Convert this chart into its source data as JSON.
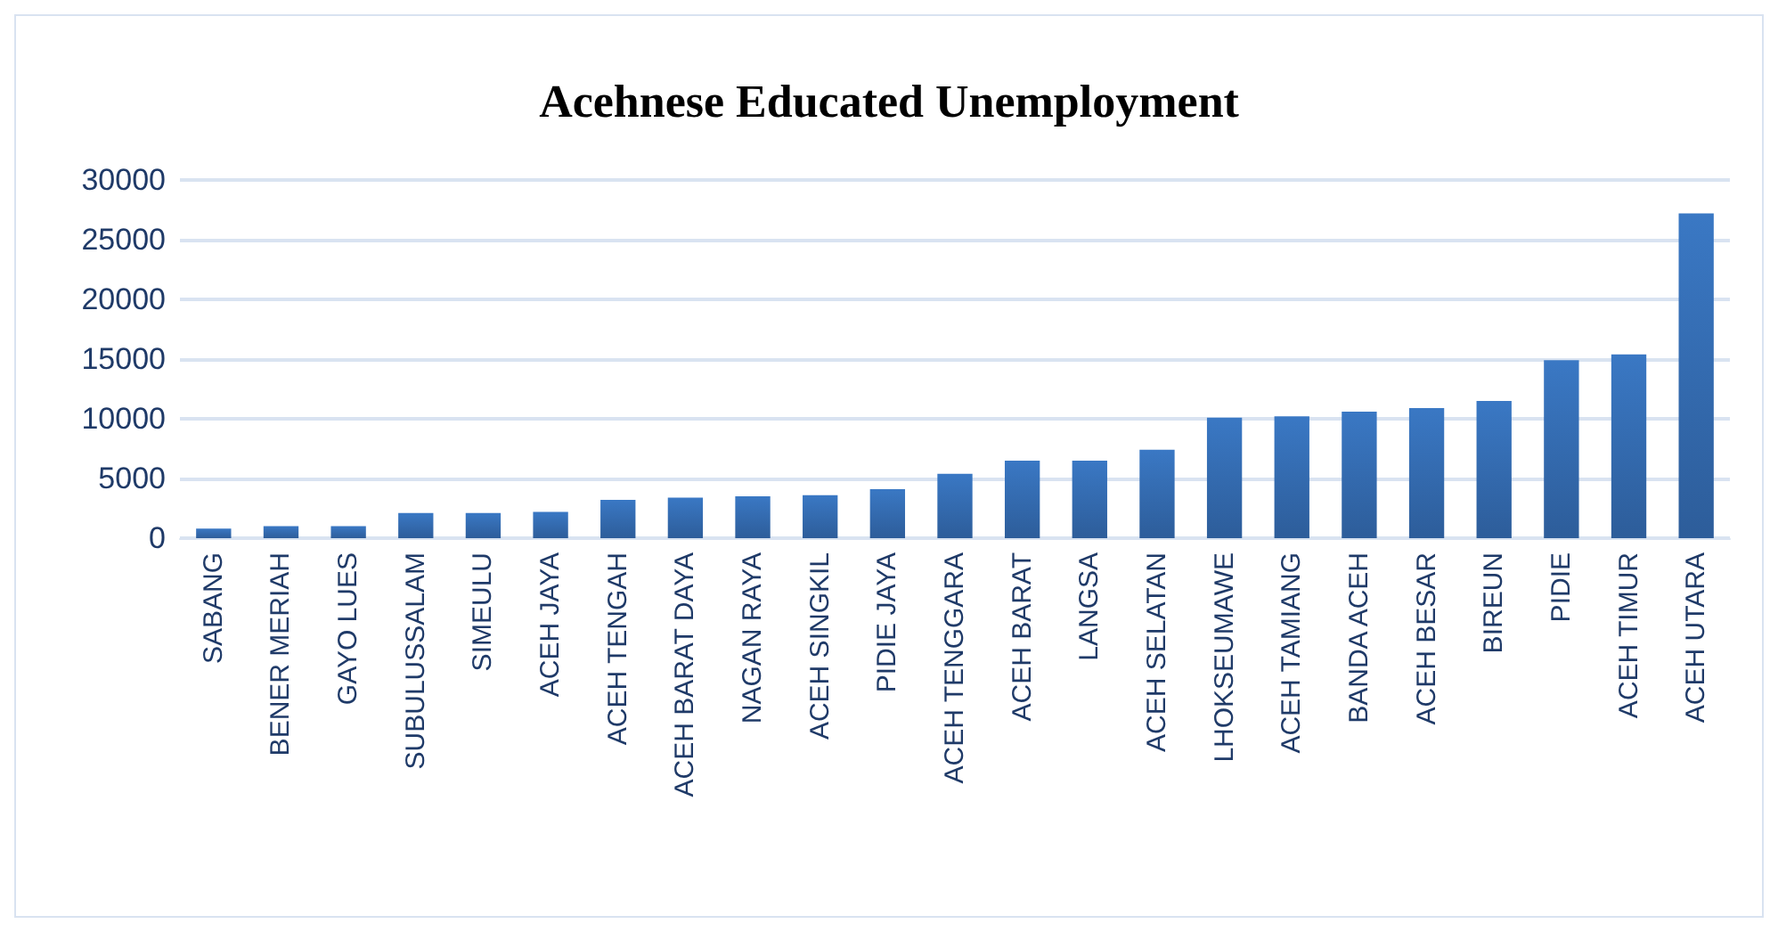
{
  "chart_data": {
    "type": "bar",
    "title": "Acehnese Educated Unemployment",
    "categories": [
      "SABANG",
      "BENER MERIAH",
      "GAYO LUES",
      "SUBULUSSALAM",
      "SIMEULU",
      "ACEH JAYA",
      "ACEH TENGAH",
      "ACEH BARAT DAYA",
      "NAGAN RAYA",
      "ACEH SINGKIL",
      "PIDIE JAYA",
      "ACEH TENGGARA",
      "ACEH BARAT",
      "LANGSA",
      "ACEH SELATAN",
      "LHOKSEUMAWE",
      "ACEH TAMIANG",
      "BANDA ACEH",
      "ACEH BESAR",
      "BIREUN",
      "PIDIE",
      "ACEH TIMUR",
      "ACEH UTARA"
    ],
    "values": [
      800,
      1000,
      1000,
      2100,
      2100,
      2200,
      3200,
      3400,
      3500,
      3600,
      4100,
      5400,
      6500,
      6500,
      7400,
      10100,
      10200,
      10600,
      10900,
      11500,
      14900,
      15400,
      27200
    ],
    "color": "#3a78c4",
    "ylim": [
      0,
      30000
    ],
    "yticks": [
      0,
      5000,
      10000,
      15000,
      20000,
      25000,
      30000
    ],
    "grid": "y"
  }
}
